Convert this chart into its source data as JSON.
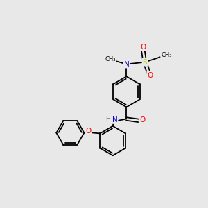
{
  "bg_color": "#e8e8e8",
  "atom_colors": {
    "C": "#000000",
    "N": "#0000cc",
    "O": "#ff0000",
    "S": "#cccc00",
    "H": "#557777"
  },
  "bond_color": "#000000",
  "lw": 1.3,
  "fs": 7.5
}
